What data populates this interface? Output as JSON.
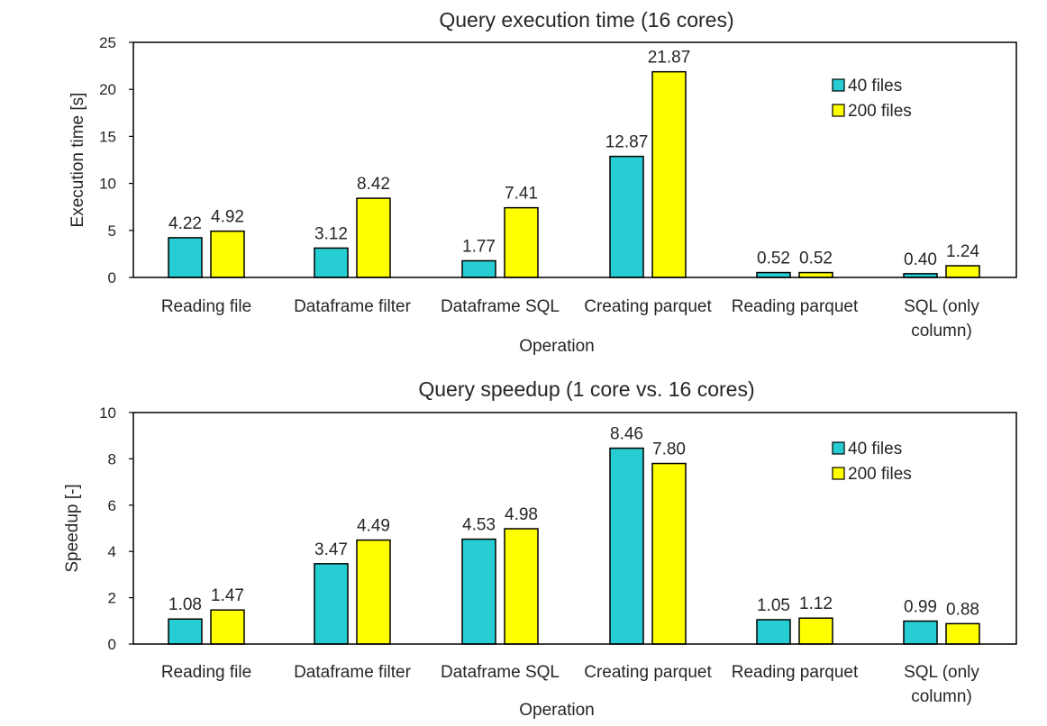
{
  "colors": {
    "series_40": "#26CED3",
    "series_200": "#FFFF00",
    "stroke": "#000000"
  },
  "chart_data": [
    {
      "type": "bar",
      "title": "Query execution time (16 cores)",
      "xlabel": "Operation",
      "ylabel": "Execution time [s]",
      "ylim": [
        0,
        25
      ],
      "yticks": [
        "0",
        "5",
        "10",
        "15",
        "20",
        "25"
      ],
      "grid": false,
      "legend_position": "top-right",
      "categories": [
        [
          "Reading file"
        ],
        [
          "Dataframe filter"
        ],
        [
          "Dataframe SQL"
        ],
        [
          "Creating parquet"
        ],
        [
          "Reading parquet"
        ],
        [
          "SQL (only",
          "column)"
        ]
      ],
      "series": [
        {
          "name": "40 files",
          "values": [
            4.22,
            3.12,
            1.77,
            12.87,
            0.52,
            0.4
          ],
          "labels": [
            "4.22",
            "3.12",
            "1.77",
            "12.87",
            "0.52",
            "0.40"
          ]
        },
        {
          "name": "200 files",
          "values": [
            4.92,
            8.42,
            7.41,
            21.87,
            0.52,
            1.24
          ],
          "labels": [
            "4.92",
            "8.42",
            "7.41",
            "21.87",
            "0.52",
            "1.24"
          ]
        }
      ]
    },
    {
      "type": "bar",
      "title": "Query speedup (1 core vs. 16 cores)",
      "xlabel": "Operation",
      "ylabel": "Speedup [-]",
      "ylim": [
        0,
        10
      ],
      "yticks": [
        "0",
        "2",
        "4",
        "6",
        "8",
        "10"
      ],
      "grid": false,
      "legend_position": "top-right",
      "categories": [
        [
          "Reading file"
        ],
        [
          "Dataframe filter"
        ],
        [
          "Dataframe SQL"
        ],
        [
          "Creating parquet"
        ],
        [
          "Reading parquet"
        ],
        [
          "SQL (only",
          "column)"
        ]
      ],
      "series": [
        {
          "name": "40 files",
          "values": [
            1.08,
            3.47,
            4.53,
            8.46,
            1.05,
            0.99
          ],
          "labels": [
            "1.08",
            "3.47",
            "4.53",
            "8.46",
            "1.05",
            "0.99"
          ]
        },
        {
          "name": "200 files",
          "values": [
            1.47,
            4.49,
            4.98,
            7.8,
            1.12,
            0.88
          ],
          "labels": [
            "1.47",
            "4.49",
            "4.98",
            "7.80",
            "1.12",
            "0.88"
          ]
        }
      ]
    }
  ]
}
